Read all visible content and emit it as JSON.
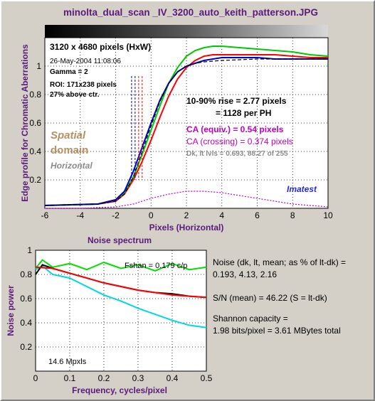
{
  "title": "minolta_dual_scan _IV_3200_auto_keith_patterson.JPG",
  "image_info": {
    "pixels": "3120 x 4680 pixels (HxW)",
    "date": "26-May-2004 11:08:06",
    "gamma": "Gamma = 2",
    "roi": "ROI: 171x238 pixels",
    "above_ctr": "27% above ctr."
  },
  "edge_results": {
    "rise": "10-90% rise = 2.77 pixels",
    "per_ph": "= 1128 per PH",
    "ca_equiv": "CA (equiv.) = 0.54 pixels",
    "ca_crossing": "CA (crossing) = 0.374 pixels",
    "levels": "Dk, lt lvls = 0.693, 88.27 of 255"
  },
  "domain_labels": {
    "spatial": "Spatial",
    "domain": "domain",
    "horizontal": "Horizontal"
  },
  "brand": "Imatest",
  "noise_results": {
    "line1": "Noise (dk, lt, mean; as % of lt-dk) =",
    "line2": "0.193,  4.13,  2.16",
    "sn": "S/N (mean) = 46.22  (S = lt-dk)",
    "shannon1": "Shannon capacity =",
    "shannon2": "1.98 bits/pixel = 3.61 MBytes total"
  },
  "chart_data": [
    {
      "type": "line",
      "xlabel": "Pixels (Horizontal)",
      "ylabel": "Edge profile for Chromatic Aberrations",
      "xlim": [
        -6,
        10
      ],
      "ylim": [
        0,
        1.2
      ],
      "xticks": [
        -6,
        -4,
        -2,
        0,
        2,
        4,
        6,
        8,
        10
      ],
      "yticks": [
        0.2,
        0.4,
        0.6,
        0.8,
        1
      ],
      "grid": true,
      "series": [
        {
          "color": "#ff0000",
          "x": [
            -6,
            -3,
            -2,
            -1.5,
            -1,
            -0.5,
            0,
            0.5,
            1,
            1.5,
            2,
            2.5,
            3,
            3.5,
            4,
            5,
            6,
            7,
            8,
            9,
            10
          ],
          "y": [
            0.02,
            0.03,
            0.05,
            0.1,
            0.2,
            0.33,
            0.48,
            0.64,
            0.79,
            0.91,
            0.99,
            1.04,
            1.07,
            1.08,
            1.08,
            1.08,
            1.08,
            1.08,
            1.07,
            1.06,
            1.06
          ]
        },
        {
          "color": "#00c800",
          "x": [
            -6,
            -3,
            -2,
            -1.5,
            -1,
            -0.5,
            0,
            0.5,
            1,
            1.5,
            2,
            2.5,
            3,
            3.5,
            4,
            5,
            6,
            7,
            8,
            9,
            10
          ],
          "y": [
            0.02,
            0.03,
            0.06,
            0.11,
            0.22,
            0.38,
            0.55,
            0.72,
            0.88,
            0.99,
            1.07,
            1.11,
            1.13,
            1.14,
            1.14,
            1.13,
            1.12,
            1.11,
            1.1,
            1.08,
            1.07
          ]
        },
        {
          "color": "#0000c8",
          "x": [
            -6,
            -3,
            -2,
            -1.5,
            -1,
            -0.5,
            0,
            0.5,
            1,
            1.5,
            2,
            2.5,
            3,
            3.5,
            4,
            5,
            6,
            7,
            8,
            9,
            10
          ],
          "y": [
            0.02,
            0.03,
            0.06,
            0.12,
            0.26,
            0.43,
            0.6,
            0.76,
            0.88,
            0.96,
            1.0,
            1.02,
            1.04,
            1.05,
            1.06,
            1.06,
            1.06,
            1.05,
            1.05,
            1.05,
            1.05
          ]
        },
        {
          "color": "#000000",
          "dashed": true,
          "x": [
            -6,
            -3,
            -2,
            -1.5,
            -1,
            -0.5,
            0,
            0.5,
            1,
            1.5,
            2,
            2.5,
            3,
            4,
            6,
            8,
            10
          ],
          "y": [
            0.02,
            0.03,
            0.05,
            0.1,
            0.22,
            0.4,
            0.58,
            0.75,
            0.88,
            0.96,
            1.0,
            1.02,
            1.03,
            1.04,
            1.05,
            1.05,
            1.05
          ]
        },
        {
          "color": "#c800c8",
          "dotted": true,
          "x": [
            -6,
            -4,
            -2,
            -1,
            0,
            1,
            2,
            3,
            4,
            5,
            6,
            7,
            8,
            9,
            10
          ],
          "y": [
            0.0,
            0.0,
            0.01,
            0.03,
            0.07,
            0.1,
            0.12,
            0.12,
            0.11,
            0.09,
            0.07,
            0.05,
            0.03,
            0.02,
            0.01
          ]
        }
      ],
      "markers_x": [
        -1.1,
        -0.9,
        -0.7,
        -0.5
      ]
    },
    {
      "type": "line",
      "title": "Noise spectrum",
      "xlabel": "Frequency, cycles/pixel",
      "ylabel": "Noise power",
      "xlim": [
        0,
        0.5
      ],
      "ylim": [
        0,
        1
      ],
      "xticks": [
        0,
        0.1,
        0.2,
        0.3,
        0.4,
        0.5
      ],
      "xtick_labels": [
        "0",
        "0.1",
        "0.2",
        "0.3",
        "0.4",
        "0.5"
      ],
      "yticks": [
        0.2,
        0.4,
        0.6,
        0.8,
        1
      ],
      "ytick_labels": [
        "0.2",
        "0.4",
        "0.6",
        "0.8",
        "1"
      ],
      "grid": true,
      "annotation_fshan": "Fshan = 0.179 c/p",
      "annotation_mpxls": "14.6 Mpxls",
      "series": [
        {
          "color": "#00e000",
          "x": [
            0.0,
            0.02,
            0.05,
            0.1,
            0.15,
            0.2,
            0.25,
            0.3,
            0.35,
            0.4,
            0.45,
            0.5
          ],
          "y": [
            0.85,
            0.92,
            0.86,
            0.89,
            0.84,
            0.9,
            0.85,
            0.88,
            0.83,
            0.89,
            0.84,
            0.86
          ]
        },
        {
          "color": "#00d8e0",
          "x": [
            0.0,
            0.02,
            0.05,
            0.1,
            0.15,
            0.2,
            0.25,
            0.3,
            0.35,
            0.4,
            0.45,
            0.5
          ],
          "y": [
            0.84,
            0.87,
            0.8,
            0.77,
            0.7,
            0.63,
            0.58,
            0.52,
            0.47,
            0.42,
            0.38,
            0.36
          ]
        },
        {
          "color": "#000000",
          "x": [
            0.0,
            0.02,
            0.05,
            0.1,
            0.15,
            0.2,
            0.25,
            0.3,
            0.35,
            0.4,
            0.45,
            0.5
          ],
          "y": [
            0.8,
            0.88,
            0.85,
            0.81,
            0.77,
            0.73,
            0.7,
            0.67,
            0.65,
            0.64,
            0.62,
            0.61
          ]
        },
        {
          "color": "#ff0000",
          "x": [
            0.0,
            0.05,
            0.1,
            0.15,
            0.2,
            0.25,
            0.3,
            0.35,
            0.4,
            0.45,
            0.5
          ],
          "y": [
            0.86,
            0.85,
            0.81,
            0.77,
            0.73,
            0.7,
            0.67,
            0.65,
            0.63,
            0.62,
            0.61
          ]
        }
      ]
    }
  ]
}
